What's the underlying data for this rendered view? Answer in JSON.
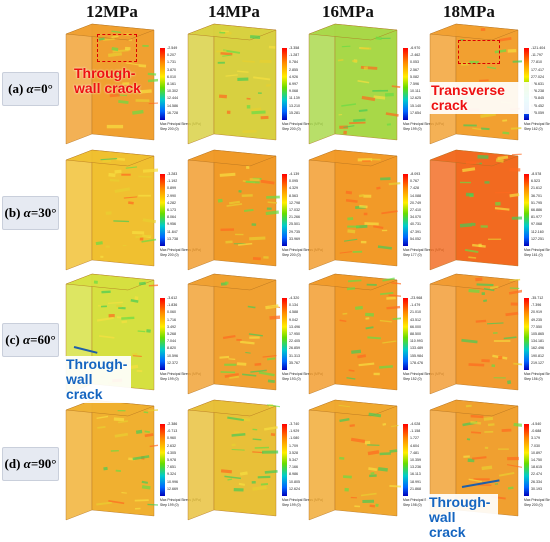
{
  "columns": [
    "12MPa",
    "14MPa",
    "16MPa",
    "18MPa"
  ],
  "rows": [
    {
      "prefix": "(a) ",
      "alpha": "α",
      "suffix": "=0°"
    },
    {
      "prefix": "(b) ",
      "alpha": "α",
      "suffix": "=30°"
    },
    {
      "prefix": "(c) ",
      "alpha": "α",
      "suffix": "=60°"
    },
    {
      "prefix": "(d) ",
      "alpha": "α",
      "suffix": "=90°"
    }
  ],
  "legend_title": "Max Principal Stress (MPa)",
  "colors": {
    "high": "#ff0000",
    "mid": "#ffee00",
    "green": "#66dd00",
    "low": "#0000bb",
    "label_bg": "#e6eaf2",
    "annotation_red": "#e11111",
    "annotation_blue": "#1565c0"
  },
  "panels": [
    [
      {
        "ticks": [
          "-2.549",
          "0.207",
          "1.731",
          "3.870",
          "6.010",
          "8.161",
          "10.302",
          "12.444",
          "14.586",
          "16.728"
        ],
        "step": "Step 200 (0)",
        "base": "#f0a030"
      },
      {
        "ticks": [
          "-3.358",
          "-1.287",
          "0.784",
          "2.855",
          "4.926",
          "6.997",
          "9.068",
          "11.139",
          "13.210",
          "15.281"
        ],
        "step": "Step 200 (0)",
        "base": "#d8d040"
      },
      {
        "ticks": [
          "-6.970",
          "-2.462",
          "0.053",
          "2.567",
          "5.082",
          "7.596",
          "10.111",
          "12.625",
          "15.140",
          "17.654"
        ],
        "step": "Step 199 (0)",
        "base": "#a8d848"
      },
      {
        "ticks": [
          "-121.404",
          "-11.797",
          "77.810",
          "177.417",
          "277.024",
          "376.631",
          "476.238",
          "575.845",
          "675.452",
          "775.059"
        ],
        "step": "Step 162 (0)",
        "base": "#f2a030"
      }
    ],
    [
      {
        "ticks": [
          "-3.283",
          "-1.192",
          "0.899",
          "2.990",
          "4.282",
          "6.173",
          "8.064",
          "9.956",
          "11.847",
          "13.738"
        ],
        "step": "Step 200 (0)",
        "base": "#f0c030"
      },
      {
        "ticks": [
          "-4.139",
          "0.095",
          "4.329",
          "8.563",
          "12.798",
          "17.032",
          "21.266",
          "25.501",
          "29.735",
          "33.969"
        ],
        "step": "Step 200 (0)",
        "base": "#f09a28"
      },
      {
        "ticks": [
          "-8.093",
          "0.767",
          "7.428",
          "14.088",
          "20.749",
          "27.410",
          "34.070",
          "40.731",
          "47.391",
          "54.052"
        ],
        "step": "Step 177 (0)",
        "base": "#f29a28"
      },
      {
        "ticks": [
          "-8.578",
          "6.523",
          "21.612",
          "36.701",
          "51.795",
          "66.886",
          "81.977",
          "97.068",
          "112.160",
          "127.251"
        ],
        "step": "Step 161 (0)",
        "base": "#f26a20"
      }
    ],
    [
      {
        "ticks": [
          "-3.612",
          "-1.836",
          "0.060",
          "1.716",
          "3.492",
          "5.268",
          "7.044",
          "8.820",
          "10.596",
          "12.372"
        ],
        "step": "Step 199 (0)",
        "base": "#d6e040"
      },
      {
        "ticks": [
          "-4.320",
          "0.134",
          "4.588",
          "9.042",
          "13.496",
          "17.950",
          "22.405",
          "26.859",
          "31.313",
          "35.767"
        ],
        "step": "Step 193 (0)",
        "base": "#f0a030"
      },
      {
        "ticks": [
          "-23.968",
          "-1.479",
          "21.010",
          "43.512",
          "66.000",
          "88.500",
          "110.993",
          "133.489",
          "155.984",
          "178.476"
        ],
        "step": "Step 152 (0)",
        "base": "#f29a28"
      },
      {
        "ticks": [
          "-35.712",
          "-7.396",
          "20.919",
          "49.235",
          "77.550",
          "105.865",
          "134.181",
          "162.496",
          "190.812",
          "219.127"
        ],
        "step": "Step 156 (0)",
        "base": "#f29a30"
      }
    ],
    [
      {
        "ticks": [
          "-2.386",
          "-0.713",
          "0.960",
          "2.632",
          "4.305",
          "5.978",
          "7.651",
          "9.324",
          "10.996",
          "12.669"
        ],
        "step": "Step 199 (0)",
        "base": "#f0b030"
      },
      {
        "ticks": [
          "-3.740",
          "-1.929",
          "-1.080",
          "1.709",
          "3.528",
          "5.347",
          "7.166",
          "8.986",
          "10.805",
          "12.624"
        ],
        "step": "Step 199 (0)",
        "base": "#e8c038"
      },
      {
        "ticks": [
          "-4.028",
          "-1.158",
          "1.727",
          "4.604",
          "7.481",
          "10.359",
          "13.236",
          "16.113",
          "18.991",
          "21.868"
        ],
        "step": "Step 198 (0)",
        "base": "#f0a830"
      },
      {
        "ticks": [
          "-4.540",
          "-0.688",
          "3.179",
          "7.030",
          "10.897",
          "14.750",
          "18.615",
          "22.474",
          "26.334",
          "30.193"
        ],
        "step": "Step 200 (0)",
        "base": "#f0a030"
      }
    ]
  ],
  "annotations": {
    "r0c0": "Through-wall crack",
    "r0c3": "Transverse crack",
    "r2c0": "Through-wall crack",
    "r3c3": "Through-wall crack"
  }
}
